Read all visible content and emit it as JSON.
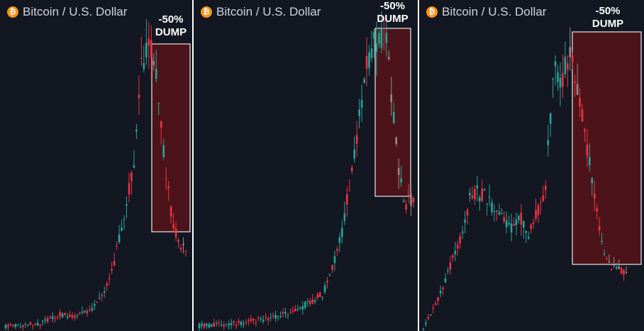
{
  "header": {
    "title": "Bitcoin / U.S. Dollar",
    "icon": "bitcoin-icon",
    "icon_glyph": "₿"
  },
  "annotation": {
    "line1": "-50%",
    "line2": "DUMP"
  },
  "colors": {
    "background": "#131722",
    "up": "#26a69a",
    "down": "#ef3340",
    "highlight_fill": "#5c1318",
    "highlight_border": "#e8e8e8",
    "divider": "#ffffff"
  },
  "chart_data": [
    {
      "type": "candlestick",
      "title": "Bitcoin / U.S. Dollar",
      "annotation": "-50% DUMP",
      "trend": [
        [
          0,
          0.01
        ],
        [
          0.2,
          0.02
        ],
        [
          0.3,
          0.05
        ],
        [
          0.38,
          0.04
        ],
        [
          0.48,
          0.07
        ],
        [
          0.58,
          0.17
        ],
        [
          0.66,
          0.4
        ],
        [
          0.72,
          0.62
        ],
        [
          0.75,
          0.9
        ],
        [
          0.8,
          1.0
        ],
        [
          0.85,
          0.82
        ],
        [
          0.88,
          0.6
        ],
        [
          0.92,
          0.4
        ],
        [
          0.96,
          0.3
        ],
        [
          1.0,
          0.27
        ]
      ],
      "dump_range": [
        0.79,
        1.0
      ]
    },
    {
      "type": "candlestick",
      "title": "Bitcoin / U.S. Dollar",
      "annotation": "-50% DUMP",
      "trend": [
        [
          0,
          0.01
        ],
        [
          0.2,
          0.02
        ],
        [
          0.35,
          0.04
        ],
        [
          0.45,
          0.06
        ],
        [
          0.58,
          0.12
        ],
        [
          0.66,
          0.3
        ],
        [
          0.72,
          0.56
        ],
        [
          0.78,
          0.88
        ],
        [
          0.82,
          0.97
        ],
        [
          0.87,
          1.0
        ],
        [
          0.9,
          0.75
        ],
        [
          0.93,
          0.55
        ],
        [
          0.96,
          0.42
        ],
        [
          1.0,
          0.44
        ]
      ],
      "dump_range": [
        0.84,
        1.0
      ]
    },
    {
      "type": "candlestick",
      "title": "Bitcoin / U.S. Dollar",
      "annotation": "-50% DUMP",
      "trend": [
        [
          0,
          0.0
        ],
        [
          0.06,
          0.08
        ],
        [
          0.12,
          0.2
        ],
        [
          0.18,
          0.32
        ],
        [
          0.24,
          0.5
        ],
        [
          0.3,
          0.48
        ],
        [
          0.36,
          0.42
        ],
        [
          0.42,
          0.36
        ],
        [
          0.48,
          0.4
        ],
        [
          0.52,
          0.34
        ],
        [
          0.56,
          0.42
        ],
        [
          0.6,
          0.5
        ],
        [
          0.62,
          0.72
        ],
        [
          0.65,
          0.96
        ],
        [
          0.68,
          0.9
        ],
        [
          0.72,
          1.0
        ],
        [
          0.76,
          0.88
        ],
        [
          0.8,
          0.68
        ],
        [
          0.84,
          0.5
        ],
        [
          0.88,
          0.3
        ],
        [
          0.92,
          0.22
        ],
        [
          1.0,
          0.2
        ]
      ],
      "dump_range": [
        0.7,
        1.0
      ]
    }
  ]
}
